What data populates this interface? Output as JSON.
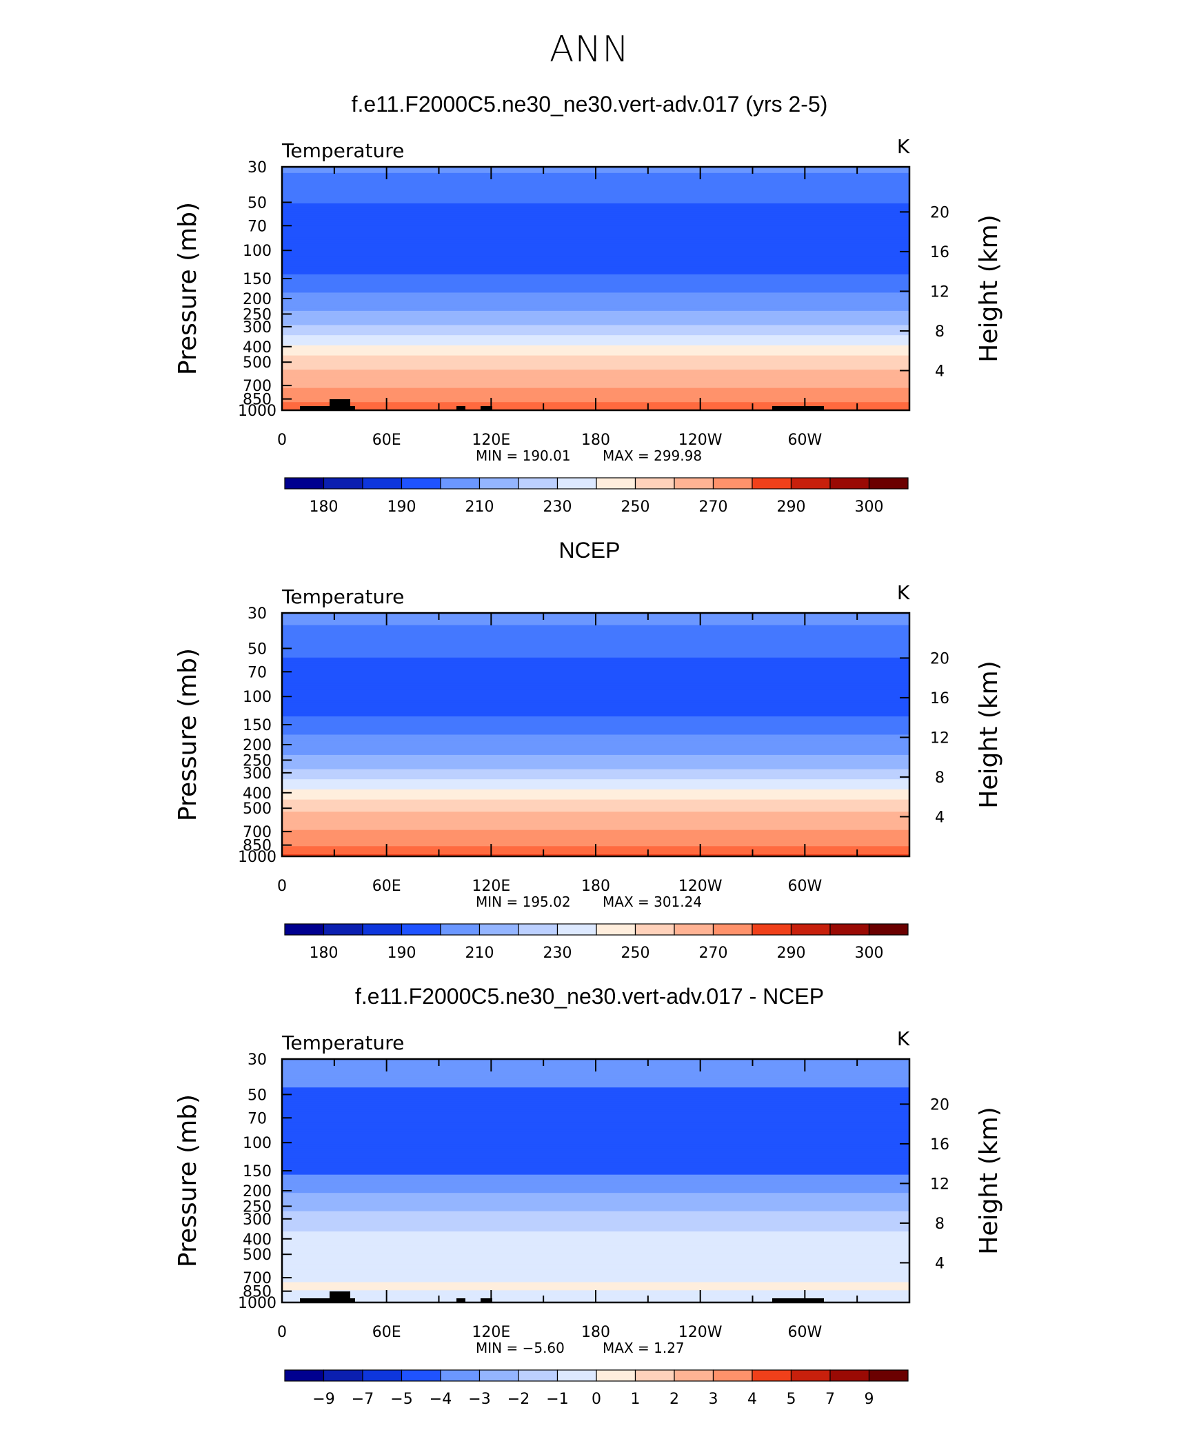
{
  "page_title": "ANN",
  "chart_data": [
    {
      "type": "heatmap",
      "title": "f.e11.F2000C5.ne30_ne30.vert-adv.017 (yrs 2-5)",
      "variable": "Temperature",
      "units": "K",
      "ylabel": "Pressure  (mb)",
      "ylabel_right": "Height  (km)",
      "xtick_labels": [
        "0",
        "60E",
        "120E",
        "180",
        "120W",
        "60W"
      ],
      "ytick_labels": [
        "30",
        "50",
        "70",
        "100",
        "150",
        "200",
        "250",
        "300",
        "400",
        "500",
        "700",
        "850",
        "1000"
      ],
      "ytick_labels_right": [
        "20",
        "16",
        "12",
        "8",
        "4"
      ],
      "min_label": "MIN  =   190.01",
      "max_label": "MAX  =   299.98",
      "colorbar_labels": [
        "180",
        "190",
        "210",
        "230",
        "250",
        "270",
        "290",
        "300"
      ],
      "levels": [
        {
          "p": 30,
          "v": 212
        },
        {
          "p": 40,
          "v": 205
        },
        {
          "p": 60,
          "v": 196
        },
        {
          "p": 100,
          "v": 193
        },
        {
          "p": 130,
          "v": 196
        },
        {
          "p": 160,
          "v": 205
        },
        {
          "p": 200,
          "v": 213
        },
        {
          "p": 250,
          "v": 222
        },
        {
          "p": 300,
          "v": 232
        },
        {
          "p": 350,
          "v": 242
        },
        {
          "p": 400,
          "v": 252
        },
        {
          "p": 450,
          "v": 260
        },
        {
          "p": 500,
          "v": 266
        },
        {
          "p": 600,
          "v": 273
        },
        {
          "p": 700,
          "v": 279
        },
        {
          "p": 800,
          "v": 285
        },
        {
          "p": 900,
          "v": 290
        },
        {
          "p": 1000,
          "v": 294
        }
      ]
    },
    {
      "type": "heatmap",
      "title": "NCEP",
      "variable": "Temperature",
      "units": "K",
      "ylabel": "Pressure  (mb)",
      "ylabel_right": "Height  (km)",
      "xtick_labels": [
        "0",
        "60E",
        "120E",
        "180",
        "120W",
        "60W"
      ],
      "ytick_labels": [
        "30",
        "50",
        "70",
        "100",
        "150",
        "200",
        "250",
        "300",
        "400",
        "500",
        "700",
        "850",
        "1000"
      ],
      "ytick_labels_right": [
        "20",
        "16",
        "12",
        "8",
        "4"
      ],
      "min_label": "MIN  =   195.02",
      "max_label": "MAX  =   301.24",
      "colorbar_labels": [
        "180",
        "190",
        "210",
        "230",
        "250",
        "270",
        "290",
        "300"
      ],
      "levels": [
        {
          "p": 30,
          "v": 214
        },
        {
          "p": 40,
          "v": 207
        },
        {
          "p": 60,
          "v": 199
        },
        {
          "p": 100,
          "v": 197
        },
        {
          "p": 130,
          "v": 199
        },
        {
          "p": 160,
          "v": 207
        },
        {
          "p": 200,
          "v": 215
        },
        {
          "p": 250,
          "v": 223
        },
        {
          "p": 300,
          "v": 233
        },
        {
          "p": 350,
          "v": 244
        },
        {
          "p": 400,
          "v": 254
        },
        {
          "p": 450,
          "v": 262
        },
        {
          "p": 500,
          "v": 268
        },
        {
          "p": 600,
          "v": 275
        },
        {
          "p": 700,
          "v": 281
        },
        {
          "p": 800,
          "v": 287
        },
        {
          "p": 900,
          "v": 292
        },
        {
          "p": 1000,
          "v": 296
        }
      ]
    },
    {
      "type": "heatmap",
      "title": "f.e11.F2000C5.ne30_ne30.vert-adv.017 - NCEP",
      "variable": "Temperature",
      "units": "K",
      "ylabel": "Pressure  (mb)",
      "ylabel_right": "Height  (km)",
      "xtick_labels": [
        "0",
        "60E",
        "120E",
        "180",
        "120W",
        "60W"
      ],
      "ytick_labels": [
        "30",
        "50",
        "70",
        "100",
        "150",
        "200",
        "250",
        "300",
        "400",
        "500",
        "700",
        "850",
        "1000"
      ],
      "ytick_labels_right": [
        "20",
        "16",
        "12",
        "8",
        "4"
      ],
      "min_label": "MIN  =    −5.60",
      "max_label": "MAX  =      1.27",
      "colorbar_labels": [
        "−9",
        "−7",
        "−5",
        "−4",
        "−3",
        "−2",
        "−1",
        "0",
        "1",
        "2",
        "3",
        "4",
        "5",
        "7",
        "9"
      ],
      "levels": [
        {
          "p": 30,
          "v": -3.5
        },
        {
          "p": 45,
          "v": -4.0
        },
        {
          "p": 60,
          "v": -4.6
        },
        {
          "p": 100,
          "v": -4.7
        },
        {
          "p": 150,
          "v": -4.2
        },
        {
          "p": 180,
          "v": -3.5
        },
        {
          "p": 230,
          "v": -2.5
        },
        {
          "p": 300,
          "v": -1.6
        },
        {
          "p": 400,
          "v": -0.6
        },
        {
          "p": 500,
          "v": -0.4
        },
        {
          "p": 600,
          "v": -0.5
        },
        {
          "p": 700,
          "v": -0.4
        },
        {
          "p": 800,
          "v": 0.3
        },
        {
          "p": 900,
          "v": -0.3
        },
        {
          "p": 1000,
          "v": -0.5
        }
      ]
    }
  ],
  "colormap": [
    "#00008f",
    "#0b1fb0",
    "#0e36dc",
    "#1f53ff",
    "#4478ff",
    "#6b97ff",
    "#94b5ff",
    "#bcd0ff",
    "#dde9ff",
    "#ffeedd",
    "#ffd2bb",
    "#ffb394",
    "#ff926b",
    "#ff6a3f",
    "#f0401a",
    "#c8200c",
    "#9a0a04",
    "#6b0000"
  ]
}
